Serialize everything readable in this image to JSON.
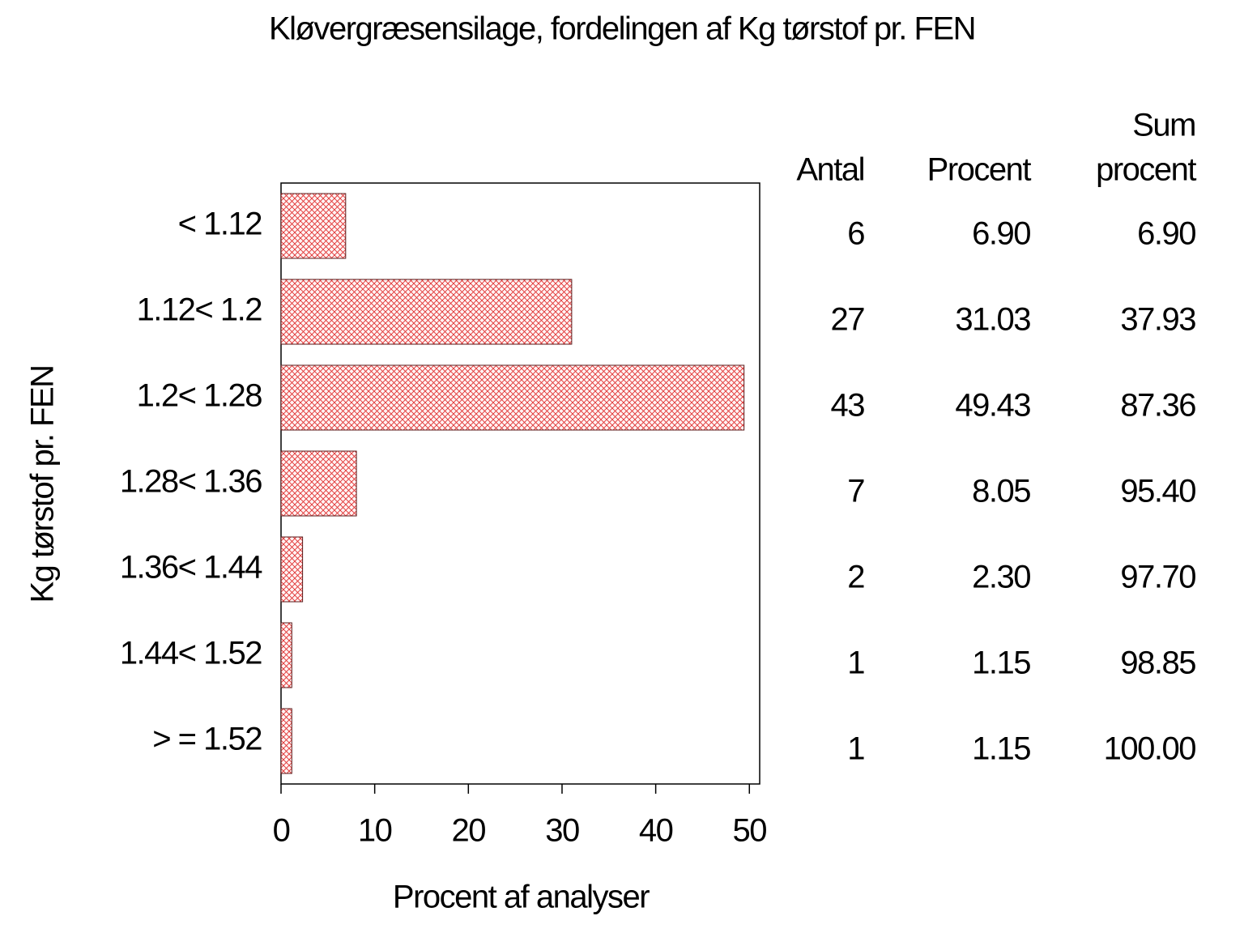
{
  "chart_data": {
    "type": "hbar",
    "title": "Kløvergræsensilage,  fordelingen  af  Kg  tørstof  pr.  FEN",
    "x_label": "Procent  af  analyser",
    "y_label": "Kg  tørstof  pr.  FEN",
    "categories": [
      "< 1.12",
      "1.12< 1.2",
      "1.2< 1.28",
      "1.28< 1.36",
      "1.36< 1.44",
      "1.44< 1.52",
      "> = 1.52"
    ],
    "values": [
      6.9,
      31.03,
      49.43,
      8.05,
      2.3,
      1.15,
      1.15
    ],
    "value_labels": [
      "6.90",
      "31.03",
      "49.43",
      "8.05",
      "2.30",
      "1.15",
      "1.15"
    ],
    "color": "#e03030",
    "xlim": [
      0,
      51.1
    ],
    "xticks": [
      0,
      10,
      20,
      30,
      40,
      50
    ],
    "table": {
      "antal_header": "Antal",
      "antal": [
        6,
        27,
        43,
        7,
        2,
        1,
        1
      ],
      "procent_header": "Procent",
      "sum_header": [
        "Sum",
        "procent"
      ],
      "sum_procent": [
        "6.90",
        "37.93",
        "87.36",
        "95.40",
        "97.70",
        "98.85",
        "100.00"
      ]
    }
  }
}
